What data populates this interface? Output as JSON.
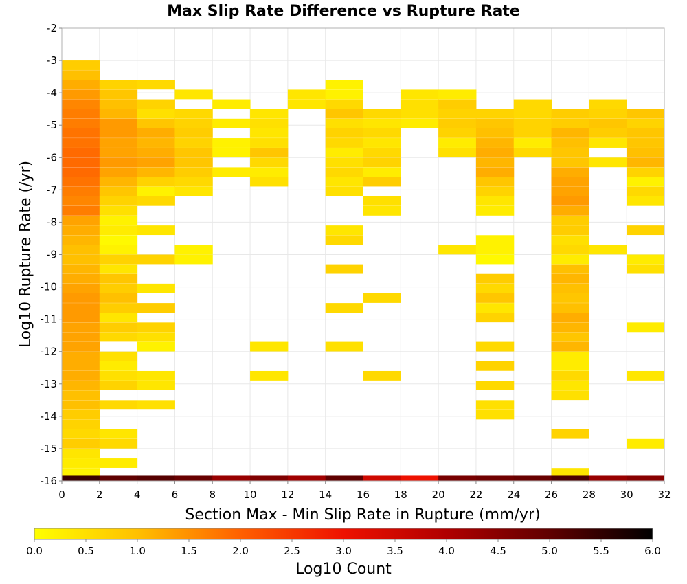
{
  "chart_data": {
    "type": "heatmap",
    "title": "Max Slip Rate Difference vs Rupture Rate",
    "xlabel": "Section Max - Min Slip Rate in Rupture (mm/yr)",
    "ylabel": "Log10 Rupture Rate (/yr)",
    "xlim": [
      0,
      32
    ],
    "ylim": [
      -16,
      -2
    ],
    "x_ticks": [
      "0",
      "2",
      "4",
      "6",
      "8",
      "10",
      "12",
      "14",
      "16",
      "18",
      "20",
      "22",
      "24",
      "26",
      "28",
      "30",
      "32"
    ],
    "y_ticks": [
      "-2",
      "-3",
      "-4",
      "-5",
      "-6",
      "-7",
      "-8",
      "-9",
      "-10",
      "-11",
      "-12",
      "-13",
      "-14",
      "-15",
      "-16"
    ],
    "grid": true,
    "bin_width_x": 2,
    "bin_height_y": 0.285,
    "colorbar": {
      "label": "Log10 Count",
      "range": [
        0,
        6
      ],
      "ticks": [
        "0.0",
        "0.5",
        "1.0",
        "1.5",
        "2.0",
        "2.5",
        "3.0",
        "3.5",
        "4.0",
        "4.5",
        "5.0",
        "5.5",
        "6.0"
      ],
      "placement": "bottom",
      "stops": [
        {
          "v": 0.0,
          "color": "#ffff00"
        },
        {
          "v": 1.0,
          "color": "#ffc000"
        },
        {
          "v": 2.0,
          "color": "#ff6000"
        },
        {
          "v": 3.0,
          "color": "#ee1100"
        },
        {
          "v": 4.0,
          "color": "#b00000"
        },
        {
          "v": 5.0,
          "color": "#600000"
        },
        {
          "v": 6.0,
          "color": "#000000"
        }
      ]
    },
    "columns": [
      {
        "x": 0,
        "cells": [
          [
            -3.0,
            0.8
          ],
          [
            -3.3,
            1.0
          ],
          [
            -3.6,
            1.2
          ],
          [
            -3.9,
            1.4
          ],
          [
            -4.2,
            1.6
          ],
          [
            -4.5,
            1.7
          ],
          [
            -4.8,
            1.7
          ],
          [
            -5.1,
            1.8
          ],
          [
            -5.4,
            1.8
          ],
          [
            -5.7,
            1.9
          ],
          [
            -6.0,
            1.9
          ],
          [
            -6.3,
            1.9
          ],
          [
            -6.6,
            1.8
          ],
          [
            -6.9,
            1.7
          ],
          [
            -7.2,
            1.6
          ],
          [
            -7.5,
            1.7
          ],
          [
            -7.8,
            1.3
          ],
          [
            -8.1,
            1.2
          ],
          [
            -8.4,
            1.1
          ],
          [
            -8.7,
            1.0
          ],
          [
            -9.0,
            1.0
          ],
          [
            -9.3,
            1.1
          ],
          [
            -9.6,
            1.2
          ],
          [
            -9.9,
            1.3
          ],
          [
            -10.2,
            1.4
          ],
          [
            -10.5,
            1.4
          ],
          [
            -10.8,
            1.4
          ],
          [
            -11.1,
            1.3
          ],
          [
            -11.4,
            1.3
          ],
          [
            -11.7,
            1.3
          ],
          [
            -12.0,
            1.2
          ],
          [
            -12.3,
            1.2
          ],
          [
            -12.6,
            1.2
          ],
          [
            -12.9,
            1.1
          ],
          [
            -13.2,
            1.0
          ],
          [
            -13.5,
            1.0
          ],
          [
            -13.8,
            0.8
          ],
          [
            -14.1,
            0.7
          ],
          [
            -14.4,
            0.6
          ],
          [
            -14.7,
            0.8
          ],
          [
            -15.0,
            0.4
          ],
          [
            -15.3,
            0.3
          ],
          [
            -15.6,
            0.2
          ]
        ]
      },
      {
        "x": 2,
        "cells": [
          [
            -3.6,
            0.7
          ],
          [
            -3.9,
            0.9
          ],
          [
            -4.2,
            1.0
          ],
          [
            -4.5,
            1.1
          ],
          [
            -4.8,
            1.4
          ],
          [
            -5.1,
            1.4
          ],
          [
            -5.4,
            1.3
          ],
          [
            -5.7,
            1.3
          ],
          [
            -6.0,
            1.4
          ],
          [
            -6.3,
            1.3
          ],
          [
            -6.6,
            1.1
          ],
          [
            -6.9,
            0.9
          ],
          [
            -7.2,
            0.7
          ],
          [
            -7.5,
            0.5
          ],
          [
            -7.8,
            0.2
          ],
          [
            -8.1,
            0.3
          ],
          [
            -8.4,
            0.1
          ],
          [
            -8.7,
            0.2
          ],
          [
            -9.0,
            0.7
          ],
          [
            -9.3,
            0.4
          ],
          [
            -9.6,
            0.9
          ],
          [
            -9.9,
            0.8
          ],
          [
            -10.2,
            1.0
          ],
          [
            -10.5,
            0.8
          ],
          [
            -10.8,
            0.4
          ],
          [
            -11.1,
            0.8
          ],
          [
            -11.4,
            0.6
          ],
          [
            -12.0,
            0.5
          ],
          [
            -12.3,
            0.3
          ],
          [
            -12.6,
            0.5
          ],
          [
            -12.9,
            0.7
          ],
          [
            -13.5,
            0.6
          ],
          [
            -14.4,
            0.4
          ],
          [
            -14.7,
            0.6
          ],
          [
            -15.3,
            0.3
          ]
        ]
      },
      {
        "x": 4,
        "cells": [
          [
            -3.6,
            0.6
          ],
          [
            -4.2,
            0.7
          ],
          [
            -4.5,
            0.5
          ],
          [
            -4.8,
            0.9
          ],
          [
            -5.1,
            1.2
          ],
          [
            -5.4,
            1.1
          ],
          [
            -5.7,
            1.2
          ],
          [
            -6.0,
            1.3
          ],
          [
            -6.3,
            1.1
          ],
          [
            -6.6,
            0.7
          ],
          [
            -6.9,
            0.2
          ],
          [
            -7.2,
            0.6
          ],
          [
            -8.1,
            0.4
          ],
          [
            -9.0,
            0.7
          ],
          [
            -9.9,
            0.4
          ],
          [
            -10.5,
            0.8
          ],
          [
            -11.1,
            0.7
          ],
          [
            -11.4,
            0.5
          ],
          [
            -11.7,
            0.2
          ],
          [
            -12.6,
            0.4
          ],
          [
            -12.9,
            0.4
          ],
          [
            -13.5,
            0.5
          ]
        ]
      },
      {
        "x": 6,
        "cells": [
          [
            -3.9,
            0.4
          ],
          [
            -4.5,
            0.6
          ],
          [
            -4.8,
            0.7
          ],
          [
            -5.1,
            0.8
          ],
          [
            -5.4,
            0.7
          ],
          [
            -5.7,
            0.9
          ],
          [
            -6.0,
            0.9
          ],
          [
            -6.3,
            0.8
          ],
          [
            -6.6,
            0.6
          ],
          [
            -6.9,
            0.4
          ],
          [
            -8.7,
            0.2
          ],
          [
            -9.0,
            0.2
          ]
        ]
      },
      {
        "x": 8,
        "cells": [
          [
            -4.2,
            0.3
          ],
          [
            -4.8,
            0.3
          ],
          [
            -5.4,
            0.2
          ],
          [
            -5.7,
            0.2
          ],
          [
            -6.3,
            0.3
          ]
        ]
      },
      {
        "x": 10,
        "cells": [
          [
            -4.5,
            0.4
          ],
          [
            -4.8,
            0.5
          ],
          [
            -5.1,
            0.4
          ],
          [
            -5.4,
            0.5
          ],
          [
            -5.7,
            0.9
          ],
          [
            -6.0,
            0.6
          ],
          [
            -6.3,
            0.3
          ],
          [
            -6.6,
            0.5
          ],
          [
            -11.7,
            0.4
          ],
          [
            -12.6,
            0.4
          ]
        ]
      },
      {
        "x": 12,
        "cells": [
          [
            -3.9,
            0.4
          ],
          [
            -4.2,
            0.4
          ]
        ]
      },
      {
        "x": 14,
        "cells": [
          [
            -3.6,
            0.2
          ],
          [
            -3.9,
            0.2
          ],
          [
            -4.2,
            0.6
          ],
          [
            -4.5,
            0.9
          ],
          [
            -4.8,
            0.5
          ],
          [
            -5.1,
            0.7
          ],
          [
            -5.4,
            0.6
          ],
          [
            -5.7,
            0.3
          ],
          [
            -6.0,
            0.5
          ],
          [
            -6.3,
            0.6
          ],
          [
            -6.6,
            0.4
          ],
          [
            -6.9,
            0.5
          ],
          [
            -8.1,
            0.4
          ],
          [
            -8.4,
            0.6
          ],
          [
            -9.3,
            0.7
          ],
          [
            -10.5,
            0.6
          ],
          [
            -11.7,
            0.5
          ]
        ]
      },
      {
        "x": 16,
        "cells": [
          [
            -4.5,
            0.6
          ],
          [
            -4.8,
            0.4
          ],
          [
            -5.1,
            0.6
          ],
          [
            -5.4,
            0.4
          ],
          [
            -5.7,
            0.6
          ],
          [
            -6.0,
            0.7
          ],
          [
            -6.3,
            0.3
          ],
          [
            -6.6,
            0.8
          ],
          [
            -7.2,
            0.5
          ],
          [
            -7.5,
            0.4
          ],
          [
            -10.2,
            0.6
          ],
          [
            -12.6,
            0.6
          ]
        ]
      },
      {
        "x": 18,
        "cells": [
          [
            -3.9,
            0.4
          ],
          [
            -4.2,
            0.5
          ],
          [
            -4.5,
            0.5
          ],
          [
            -4.8,
            0.3
          ]
        ]
      },
      {
        "x": 20,
        "cells": [
          [
            -3.9,
            0.3
          ],
          [
            -4.2,
            0.8
          ],
          [
            -4.5,
            0.7
          ],
          [
            -4.8,
            0.8
          ],
          [
            -5.1,
            0.7
          ],
          [
            -5.4,
            0.3
          ],
          [
            -5.7,
            0.5
          ],
          [
            -8.7,
            0.4
          ]
        ]
      },
      {
        "x": 22,
        "cells": [
          [
            -4.5,
            0.7
          ],
          [
            -4.8,
            0.9
          ],
          [
            -5.1,
            1.0
          ],
          [
            -5.4,
            1.1
          ],
          [
            -5.7,
            1.2
          ],
          [
            -6.0,
            1.1
          ],
          [
            -6.3,
            1.2
          ],
          [
            -6.6,
            0.9
          ],
          [
            -6.9,
            0.7
          ],
          [
            -7.2,
            0.4
          ],
          [
            -7.5,
            0.3
          ],
          [
            -8.4,
            0.2
          ],
          [
            -8.7,
            0.2
          ],
          [
            -9.0,
            0.1
          ],
          [
            -9.6,
            0.8
          ],
          [
            -9.9,
            0.6
          ],
          [
            -10.2,
            0.9
          ],
          [
            -10.5,
            0.4
          ],
          [
            -10.8,
            0.7
          ],
          [
            -11.7,
            0.6
          ],
          [
            -12.3,
            0.7
          ],
          [
            -12.9,
            0.6
          ],
          [
            -13.5,
            0.5
          ],
          [
            -13.8,
            0.5
          ]
        ]
      },
      {
        "x": 24,
        "cells": [
          [
            -4.2,
            0.6
          ],
          [
            -4.5,
            0.6
          ],
          [
            -4.8,
            0.7
          ],
          [
            -5.1,
            0.7
          ],
          [
            -5.4,
            0.3
          ],
          [
            -5.7,
            0.6
          ]
        ]
      },
      {
        "x": 26,
        "cells": [
          [
            -4.5,
            0.8
          ],
          [
            -4.8,
            0.8
          ],
          [
            -5.1,
            1.1
          ],
          [
            -5.4,
            1.0
          ],
          [
            -5.7,
            0.9
          ],
          [
            -6.0,
            0.9
          ],
          [
            -6.3,
            1.2
          ],
          [
            -6.6,
            1.3
          ],
          [
            -6.9,
            1.3
          ],
          [
            -7.2,
            1.4
          ],
          [
            -7.5,
            1.2
          ],
          [
            -7.8,
            0.8
          ],
          [
            -8.1,
            0.8
          ],
          [
            -8.4,
            0.5
          ],
          [
            -8.7,
            0.6
          ],
          [
            -9.0,
            0.3
          ],
          [
            -9.3,
            1.0
          ],
          [
            -9.6,
            1.1
          ],
          [
            -9.9,
            1.0
          ],
          [
            -10.2,
            0.9
          ],
          [
            -10.5,
            1.0
          ],
          [
            -10.8,
            1.2
          ],
          [
            -11.1,
            1.1
          ],
          [
            -11.4,
            0.9
          ],
          [
            -11.7,
            1.1
          ],
          [
            -12.0,
            0.3
          ],
          [
            -12.3,
            0.3
          ],
          [
            -12.6,
            0.6
          ],
          [
            -12.9,
            0.4
          ],
          [
            -13.2,
            0.5
          ],
          [
            -14.4,
            0.7
          ],
          [
            -15.6,
            0.4
          ]
        ]
      },
      {
        "x": 28,
        "cells": [
          [
            -4.2,
            0.6
          ],
          [
            -4.5,
            0.7
          ],
          [
            -4.8,
            0.9
          ],
          [
            -5.1,
            0.8
          ],
          [
            -5.4,
            0.4
          ],
          [
            -6.0,
            0.4
          ],
          [
            -8.7,
            0.4
          ]
        ]
      },
      {
        "x": 30,
        "cells": [
          [
            -4.5,
            0.9
          ],
          [
            -4.8,
            0.7
          ],
          [
            -5.1,
            0.9
          ],
          [
            -5.4,
            0.9
          ],
          [
            -5.7,
            1.0
          ],
          [
            -6.0,
            1.1
          ],
          [
            -6.3,
            0.7
          ],
          [
            -6.6,
            0.2
          ],
          [
            -6.9,
            0.6
          ],
          [
            -7.2,
            0.4
          ],
          [
            -8.1,
            0.7
          ],
          [
            -9.0,
            0.3
          ],
          [
            -9.3,
            0.5
          ],
          [
            -11.1,
            0.3
          ],
          [
            -12.6,
            0.4
          ],
          [
            -14.7,
            0.3
          ]
        ]
      }
    ],
    "bottom_row": {
      "y": -16.0,
      "values": [
        5.4,
        5.0,
        5.1,
        4.9,
        4.3,
        4.6,
        4.2,
        5.0,
        3.5,
        3.0,
        4.7,
        4.8,
        4.9,
        5.2,
        4.3,
        4.5
      ]
    }
  }
}
